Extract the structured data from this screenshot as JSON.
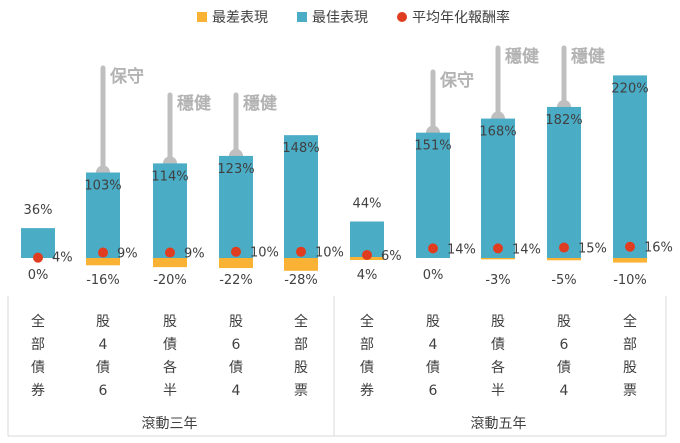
{
  "chart_data": {
    "type": "bar",
    "title": "",
    "legend": [
      {
        "key": "worst",
        "label": "最差表現",
        "color": "#f9b233"
      },
      {
        "key": "best",
        "label": "最佳表現",
        "color": "#4bacc6"
      },
      {
        "key": "avg",
        "label": "平均年化報酬率",
        "color": "#e03c1f"
      }
    ],
    "groups": [
      {
        "label": "滾動三年",
        "start": 0,
        "end": 4
      },
      {
        "label": "滾動五年",
        "start": 5,
        "end": 9
      }
    ],
    "categories": [
      {
        "label": "全部債券",
        "chars": [
          "全",
          "部",
          "債",
          "券"
        ]
      },
      {
        "label": "股4債6",
        "chars": [
          "股",
          "4",
          "債",
          "6"
        ]
      },
      {
        "label": "股債各半",
        "chars": [
          "股",
          "債",
          "各",
          "半"
        ]
      },
      {
        "label": "股6債4",
        "chars": [
          "股",
          "6",
          "債",
          "4"
        ]
      },
      {
        "label": "全部股票",
        "chars": [
          "全",
          "部",
          "股",
          "票"
        ]
      },
      {
        "label": "全部債券",
        "chars": [
          "全",
          "部",
          "債",
          "券"
        ]
      },
      {
        "label": "股4債6",
        "chars": [
          "股",
          "4",
          "債",
          "6"
        ]
      },
      {
        "label": "股債各半",
        "chars": [
          "股",
          "債",
          "各",
          "半"
        ]
      },
      {
        "label": "股6債4",
        "chars": [
          "股",
          "6",
          "債",
          "4"
        ]
      },
      {
        "label": "全部股票",
        "chars": [
          "全",
          "部",
          "股",
          "票"
        ]
      }
    ],
    "series": [
      {
        "name": "最佳表現",
        "values": [
          36,
          103,
          114,
          123,
          148,
          44,
          151,
          168,
          182,
          220
        ],
        "labels": [
          "36%",
          "103%",
          "114%",
          "123%",
          "148%",
          "44%",
          "151%",
          "168%",
          "182%",
          "220%"
        ]
      },
      {
        "name": "最差表現",
        "values": [
          0,
          -16,
          -20,
          -22,
          -28,
          4,
          0,
          -3,
          -5,
          -10
        ],
        "labels": [
          "0%",
          "-16%",
          "-20%",
          "-22%",
          "-28%",
          "4%",
          "0%",
          "-3%",
          "-5%",
          "-10%"
        ]
      },
      {
        "name": "平均年化報酬率",
        "values": [
          4,
          9,
          9,
          10,
          10,
          6,
          14,
          14,
          15,
          16
        ],
        "labels": [
          "4%",
          "9%",
          "9%",
          "10%",
          "10%",
          "6%",
          "14%",
          "14%",
          "15%",
          "16%"
        ]
      }
    ],
    "annotations": [
      {
        "index": 1,
        "text": "保守"
      },
      {
        "index": 2,
        "text": "穩健"
      },
      {
        "index": 3,
        "text": "穩健"
      },
      {
        "index": 6,
        "text": "保守"
      },
      {
        "index": 7,
        "text": "穩健"
      },
      {
        "index": 8,
        "text": "穩健"
      }
    ],
    "ylim": [
      -30,
      240
    ]
  }
}
